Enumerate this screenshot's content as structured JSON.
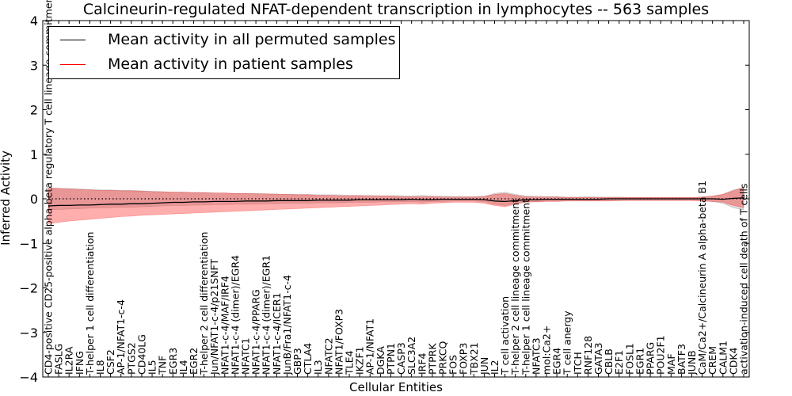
{
  "chart_data": {
    "type": "line",
    "title": "Calcineurin-regulated NFAT-dependent transcription in lymphocytes -- 563 samples",
    "xlabel": "Cellular Entities",
    "ylabel": "Inferred Activity",
    "ylim": [
      -4,
      4
    ],
    "yticks": [
      -4,
      -3,
      -2,
      -1,
      0,
      1,
      2,
      3,
      4
    ],
    "ytick_labels": [
      "−4",
      "−3",
      "−2",
      "−1",
      "0",
      "1",
      "2",
      "3",
      "4"
    ],
    "legend_position": "top-left",
    "categories": [
      "CD4-positive CD25-positive alpha-beta regulatory T cell lineage commitment",
      "FASLG",
      "IL2RA",
      "IFNG",
      "T-helper 1 cell differentiation",
      "IL8",
      "CSF2",
      "AP-1/NFAT1-c-4",
      "PTGS2",
      "CD40LG",
      "IL5",
      "TNF",
      "EGR3",
      "IL4",
      "EGR2",
      "T-helper 2 cell differentiation",
      "Jun/NFAT1-c-4/p21SNFT",
      "NFAT1-c-4/MAF/IRF4",
      "NFAT1-c-4 (dimer)/EGR4",
      "NFATC1",
      "NFAT1-c-4/PPARG",
      "NFAT1-c-4 (dimer)/EGR1",
      "NFAT1-c-4/ICER1",
      "JunB/Fra1/NFAT1-c-4",
      "GBP3",
      "CTLA4",
      "IL3",
      "NFATC2",
      "NFAT1/FOXP3",
      "TLE4",
      "IKZF1",
      "AP-1/NFAT1",
      "DGKA",
      "PTPN1",
      "CASP3",
      "SLC3A2",
      "IRF4",
      "PTPRK",
      "PRKCQ",
      "FOS",
      "FOXP3",
      "TBX21",
      "JUN",
      "IL2",
      "T cell activation",
      "T-helper 2 cell lineage commitment",
      "T-helper 1 cell lineage commitment",
      "NFATC3",
      "mol:Ca2+",
      "EGR4",
      "T cell anergy",
      "ITCH",
      "RNF128",
      "GATA3",
      "CBLB",
      "E2F1",
      "FOSL1",
      "EGR1",
      "PPARG",
      "POU2F1",
      "MAF",
      "BATF3",
      "JUNB",
      "CaM/Ca2+/Calcineurin A alpha-beta B1",
      "CREM",
      "CALM1",
      "CDK4",
      "activation-induced cell death of T cells"
    ],
    "series": [
      {
        "name": "Mean activity in all permuted samples",
        "color": "#000000",
        "style": "dotted",
        "values": [
          0,
          0,
          0,
          0,
          0,
          0,
          0,
          0,
          0,
          0,
          0,
          0,
          0,
          0,
          0,
          0,
          0,
          0,
          0,
          0,
          0,
          0,
          0,
          0,
          0,
          0,
          0,
          0,
          0,
          0,
          0,
          0,
          0,
          0,
          0,
          0,
          0,
          0,
          0,
          0,
          0,
          0,
          0,
          0,
          0,
          0,
          0,
          0,
          0,
          0,
          0,
          0,
          0,
          0,
          0,
          0,
          0,
          0,
          0,
          0,
          0,
          0,
          0,
          0,
          0,
          0,
          0,
          0
        ],
        "band_lower": [
          -0.25,
          -0.24,
          -0.23,
          -0.22,
          -0.21,
          -0.2,
          -0.2,
          -0.19,
          -0.19,
          -0.18,
          -0.17,
          -0.16,
          -0.15,
          -0.15,
          -0.14,
          -0.14,
          -0.13,
          -0.13,
          -0.12,
          -0.12,
          -0.12,
          -0.11,
          -0.11,
          -0.1,
          -0.1,
          -0.1,
          -0.09,
          -0.09,
          -0.09,
          -0.08,
          -0.08,
          -0.08,
          -0.07,
          -0.07,
          -0.07,
          -0.06,
          -0.08,
          -0.06,
          -0.06,
          -0.05,
          -0.05,
          -0.05,
          -0.06,
          -0.12,
          -0.15,
          -0.1,
          -0.06,
          -0.06,
          -0.05,
          -0.05,
          -0.04,
          -0.04,
          -0.05,
          -0.04,
          -0.04,
          -0.04,
          -0.03,
          -0.03,
          -0.03,
          -0.03,
          -0.03,
          -0.03,
          -0.03,
          -0.04,
          -0.06,
          -0.1,
          -0.2,
          -0.25
        ],
        "band_upper": [
          0.25,
          0.24,
          0.23,
          0.22,
          0.21,
          0.2,
          0.2,
          0.19,
          0.19,
          0.18,
          0.17,
          0.16,
          0.15,
          0.15,
          0.14,
          0.14,
          0.13,
          0.13,
          0.12,
          0.12,
          0.12,
          0.11,
          0.11,
          0.1,
          0.1,
          0.1,
          0.09,
          0.09,
          0.09,
          0.08,
          0.08,
          0.08,
          0.07,
          0.07,
          0.07,
          0.06,
          0.08,
          0.06,
          0.06,
          0.05,
          0.05,
          0.05,
          0.06,
          0.12,
          0.15,
          0.1,
          0.06,
          0.06,
          0.05,
          0.05,
          0.04,
          0.04,
          0.05,
          0.04,
          0.04,
          0.04,
          0.03,
          0.03,
          0.03,
          0.03,
          0.03,
          0.03,
          0.03,
          0.04,
          0.06,
          0.1,
          0.2,
          0.25
        ]
      },
      {
        "name": "Mean activity in patient samples",
        "color": "#ff0000",
        "style": "solid",
        "values": [
          -0.16,
          -0.15,
          -0.15,
          -0.14,
          -0.14,
          -0.13,
          -0.12,
          -0.12,
          -0.11,
          -0.11,
          -0.1,
          -0.09,
          -0.08,
          -0.08,
          -0.07,
          -0.07,
          -0.06,
          -0.06,
          -0.06,
          -0.05,
          -0.05,
          -0.05,
          -0.04,
          -0.04,
          -0.04,
          -0.04,
          -0.03,
          -0.03,
          -0.03,
          -0.03,
          -0.02,
          -0.02,
          -0.02,
          -0.02,
          -0.02,
          -0.01,
          -0.02,
          -0.02,
          -0.01,
          -0.01,
          -0.01,
          -0.01,
          -0.02,
          -0.05,
          -0.06,
          -0.04,
          -0.02,
          -0.02,
          -0.01,
          -0.01,
          -0.01,
          -0.01,
          -0.01,
          -0.01,
          0,
          0,
          0,
          0,
          0,
          0,
          0,
          0,
          0,
          0,
          0,
          -0.01,
          0.01,
          0.02
        ],
        "band_lower": [
          -0.56,
          -0.53,
          -0.5,
          -0.48,
          -0.46,
          -0.44,
          -0.42,
          -0.4,
          -0.39,
          -0.37,
          -0.36,
          -0.35,
          -0.34,
          -0.33,
          -0.32,
          -0.31,
          -0.3,
          -0.29,
          -0.28,
          -0.27,
          -0.26,
          -0.25,
          -0.24,
          -0.23,
          -0.22,
          -0.21,
          -0.2,
          -0.19,
          -0.18,
          -0.17,
          -0.16,
          -0.15,
          -0.14,
          -0.13,
          -0.12,
          -0.11,
          -0.12,
          -0.1,
          -0.09,
          -0.08,
          -0.08,
          -0.08,
          -0.1,
          -0.15,
          -0.18,
          -0.12,
          -0.08,
          -0.07,
          -0.06,
          -0.06,
          -0.05,
          -0.05,
          -0.05,
          -0.05,
          -0.05,
          -0.04,
          -0.04,
          -0.04,
          -0.04,
          -0.04,
          -0.04,
          -0.04,
          -0.04,
          -0.05,
          -0.06,
          -0.08,
          -0.15,
          -0.2
        ],
        "band_upper": [
          0.24,
          0.23,
          0.22,
          0.21,
          0.2,
          0.19,
          0.19,
          0.18,
          0.18,
          0.17,
          0.16,
          0.16,
          0.15,
          0.15,
          0.14,
          0.14,
          0.13,
          0.13,
          0.12,
          0.12,
          0.11,
          0.11,
          0.1,
          0.1,
          0.09,
          0.09,
          0.08,
          0.08,
          0.07,
          0.07,
          0.07,
          0.06,
          0.06,
          0.06,
          0.05,
          0.05,
          0.05,
          0.05,
          0.04,
          0.04,
          0.04,
          0.04,
          0.05,
          0.1,
          0.12,
          0.08,
          0.05,
          0.04,
          0.04,
          0.04,
          0.03,
          0.03,
          0.03,
          0.03,
          0.03,
          0.03,
          0.03,
          0.03,
          0.03,
          0.03,
          0.03,
          0.03,
          0.03,
          0.04,
          0.06,
          0.1,
          0.18,
          0.25
        ]
      }
    ]
  }
}
